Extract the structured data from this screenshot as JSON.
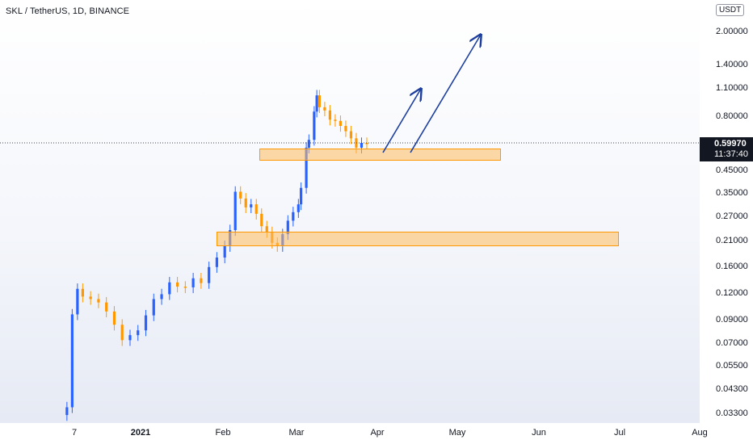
{
  "chart": {
    "title": "SKL / TetherUS, 1D, BINANCE",
    "currency": "USDT",
    "last_price": "0.59970",
    "countdown": "11:37:40",
    "price_ticks": [
      "2.00000",
      "1.40000",
      "1.10000",
      "0.80000",
      "0.45000",
      "0.35000",
      "0.27000",
      "0.21000",
      "0.16000",
      "0.12000",
      "0.09000",
      "0.07000",
      "0.05500",
      "0.04300",
      "0.03300"
    ],
    "time_ticks": [
      "7",
      "2021",
      "Feb",
      "Mar",
      "Apr",
      "May",
      "Jun",
      "Jul",
      "Aug"
    ],
    "colors": {
      "up": "#2962ff",
      "down": "#ff9800",
      "zone_fill": "#ffbc5e",
      "zone_border": "#ff9800",
      "arrow": "#1e3f9e"
    }
  },
  "chart_data": {
    "type": "candlestick",
    "symbol": "SKL / TetherUS",
    "interval": "1D",
    "exchange": "BINANCE",
    "y_scale": "log",
    "ylim": [
      0.03,
      2.7
    ],
    "x_range": [
      "2020-12-01",
      "2021-08-01"
    ],
    "x": [
      "2020-12-04",
      "2020-12-06",
      "2020-12-08",
      "2020-12-10",
      "2020-12-13",
      "2020-12-16",
      "2020-12-19",
      "2020-12-22",
      "2020-12-25",
      "2020-12-28",
      "2020-12-31",
      "2021-01-03",
      "2021-01-06",
      "2021-01-09",
      "2021-01-12",
      "2021-01-15",
      "2021-01-18",
      "2021-01-21",
      "2021-01-24",
      "2021-01-27",
      "2021-01-30",
      "2021-02-02",
      "2021-02-04",
      "2021-02-06",
      "2021-02-08",
      "2021-02-10",
      "2021-02-12",
      "2021-02-14",
      "2021-02-16",
      "2021-02-18",
      "2021-02-20",
      "2021-02-22",
      "2021-02-24",
      "2021-02-26",
      "2021-02-28",
      "2021-03-02",
      "2021-03-03",
      "2021-03-05",
      "2021-03-06",
      "2021-03-08",
      "2021-03-09",
      "2021-03-10",
      "2021-03-12",
      "2021-03-14",
      "2021-03-16",
      "2021-03-18",
      "2021-03-20",
      "2021-03-22",
      "2021-03-24",
      "2021-03-26",
      "2021-03-28"
    ],
    "close": [
      0.035,
      0.095,
      0.125,
      0.115,
      0.112,
      0.108,
      0.098,
      0.085,
      0.072,
      0.076,
      0.08,
      0.094,
      0.112,
      0.118,
      0.134,
      0.128,
      0.127,
      0.14,
      0.133,
      0.158,
      0.175,
      0.198,
      0.235,
      0.355,
      0.33,
      0.3,
      0.31,
      0.28,
      0.245,
      0.23,
      0.205,
      0.198,
      0.225,
      0.26,
      0.285,
      0.31,
      0.37,
      0.57,
      0.62,
      0.84,
      1.0,
      0.88,
      0.85,
      0.77,
      0.76,
      0.72,
      0.68,
      0.63,
      0.57,
      0.6,
      0.5997
    ],
    "annotations": [
      {
        "type": "support-zone",
        "price_range": [
          0.54,
          0.6
        ],
        "date_range": [
          "2021-02-21",
          "2021-05-18"
        ]
      },
      {
        "type": "support-zone",
        "price_range": [
          0.193,
          0.222
        ],
        "date_range": [
          "2021-02-03",
          "2021-07-01"
        ]
      },
      {
        "type": "arrow",
        "from": [
          "2021-04-03",
          0.56
        ],
        "to": [
          "2021-04-16",
          1.15
        ]
      },
      {
        "type": "arrow",
        "from": [
          "2021-04-13",
          0.56
        ],
        "to": [
          "2021-04-30",
          2.25
        ]
      }
    ]
  }
}
